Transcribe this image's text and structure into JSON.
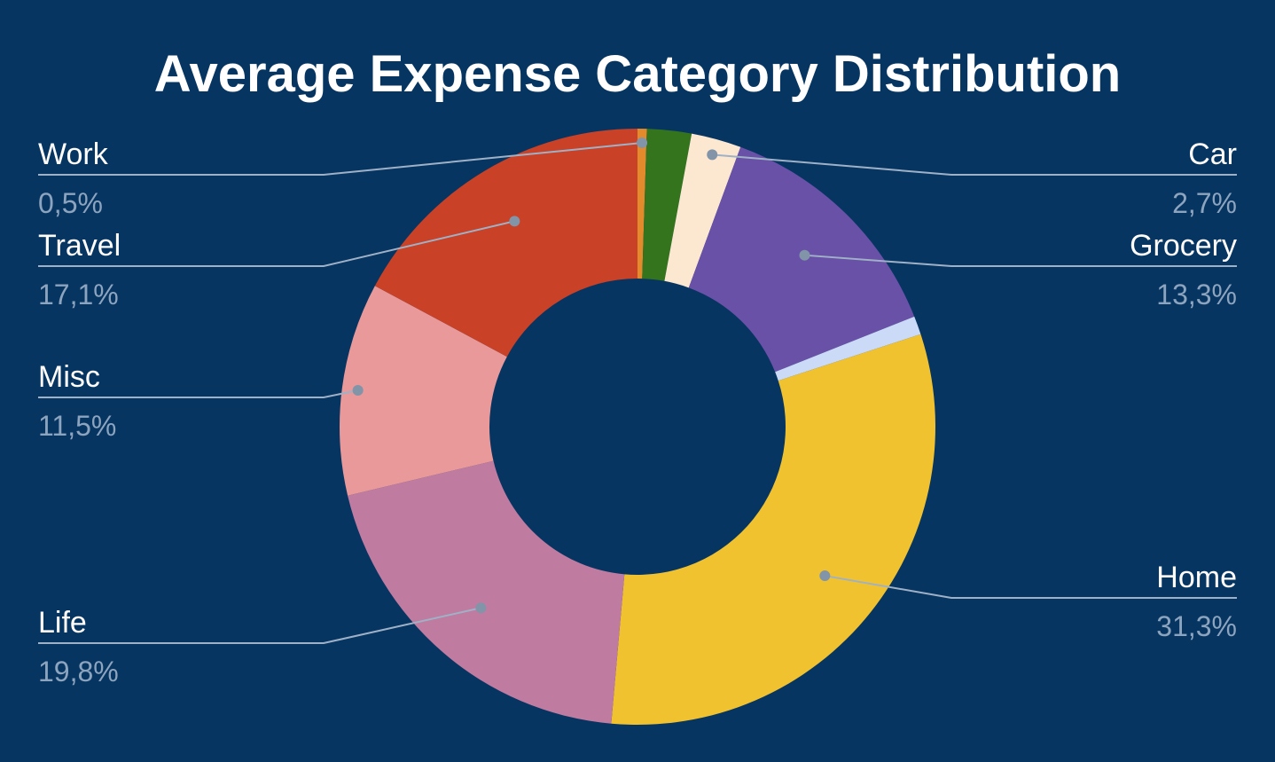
{
  "chart_data": {
    "type": "pie",
    "donut": true,
    "title": "Average Expense Category Distribution",
    "slices": [
      {
        "label": "Work",
        "value": 0.5,
        "pct_label": "0,5%",
        "color": "#e38a2c"
      },
      {
        "label": "",
        "value": 2.4,
        "pct_label": "",
        "color": "#33741c"
      },
      {
        "label": "Car",
        "value": 2.7,
        "pct_label": "2,7%",
        "color": "#fce7d1"
      },
      {
        "label": "Grocery",
        "value": 13.3,
        "pct_label": "13,3%",
        "color": "#6951a8"
      },
      {
        "label": "",
        "value": 1.0,
        "pct_label": "",
        "color": "#cbdaf7"
      },
      {
        "label": "Home",
        "value": 31.3,
        "pct_label": "31,3%",
        "color": "#f0c230"
      },
      {
        "label": "Life",
        "value": 19.8,
        "pct_label": "19,8%",
        "color": "#c07ba1"
      },
      {
        "label": "Misc",
        "value": 11.5,
        "pct_label": "11,5%",
        "color": "#e99999"
      },
      {
        "label": "Travel",
        "value": 17.1,
        "pct_label": "17,1%",
        "color": "#c94127"
      }
    ]
  },
  "colors": {
    "background": "#073561",
    "title": "#ffffff",
    "leader_line": "#9fb1c6",
    "leader_dot": "#8194a8",
    "label_name": "#ffffff",
    "label_pct": "#8da4bf"
  }
}
